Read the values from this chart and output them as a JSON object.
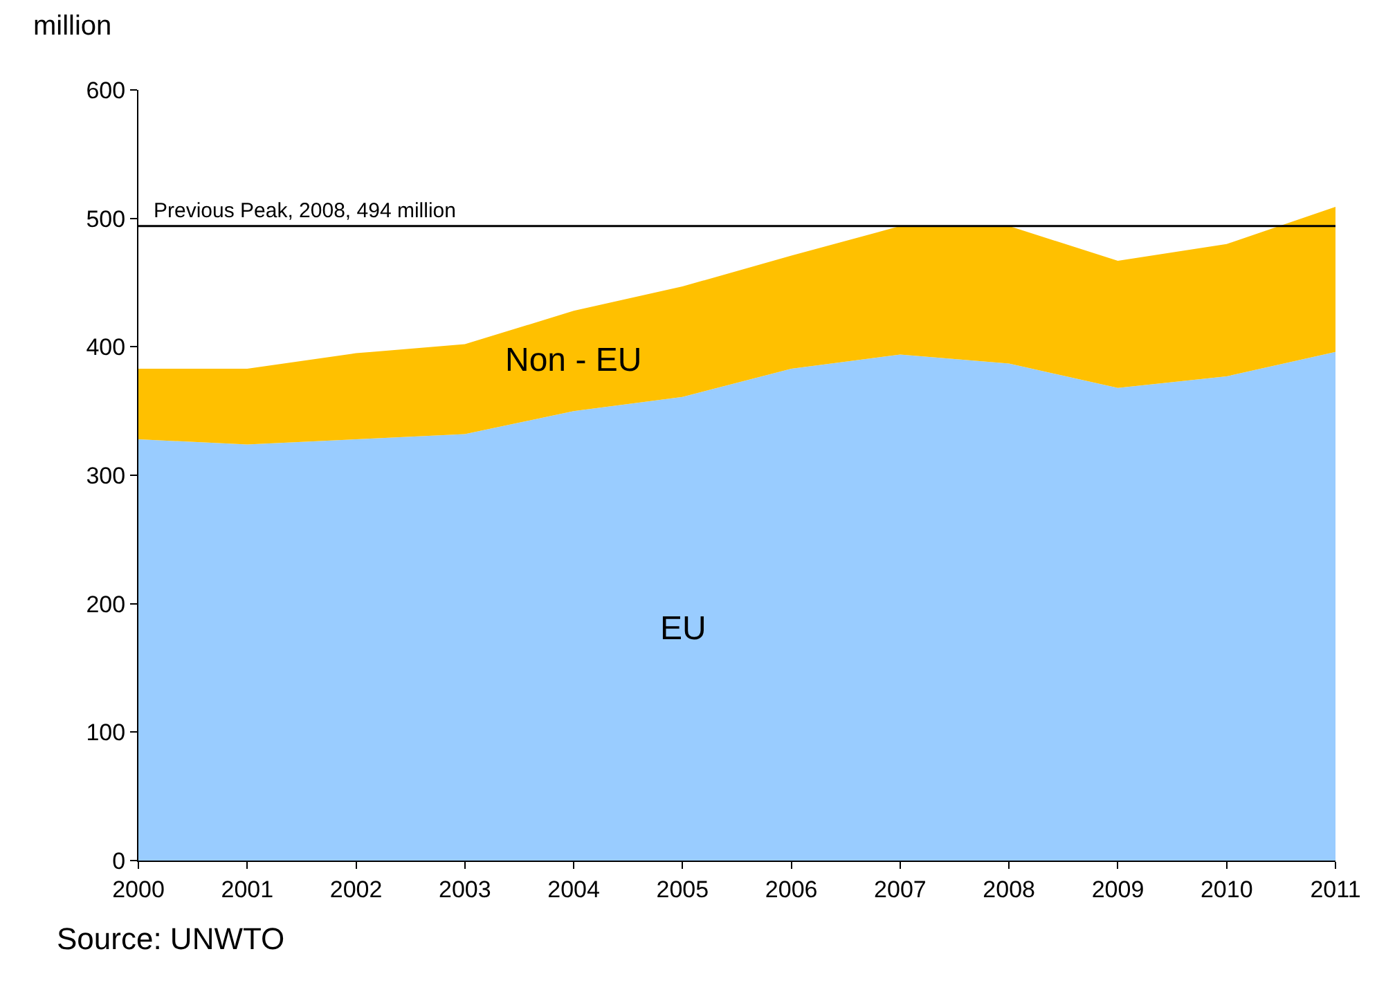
{
  "chart_data": {
    "type": "area",
    "stacked": true,
    "ylabel": "million",
    "x": [
      2000,
      2001,
      2002,
      2003,
      2004,
      2005,
      2006,
      2007,
      2008,
      2009,
      2010,
      2011
    ],
    "series": [
      {
        "name": "EU",
        "color": "#99ccff",
        "values": [
          328,
          324,
          328,
          332,
          350,
          361,
          383,
          394,
          387,
          368,
          377,
          396
        ]
      },
      {
        "name": "Non - EU",
        "color": "#ffc000",
        "values": [
          55,
          59,
          67,
          70,
          78,
          86,
          88,
          100,
          107,
          99,
          103,
          113
        ]
      }
    ],
    "xlim": [
      2000,
      2011
    ],
    "xticks": [
      2000,
      2001,
      2002,
      2003,
      2004,
      2005,
      2006,
      2007,
      2008,
      2009,
      2010,
      2011
    ],
    "ylim": [
      0,
      600
    ],
    "yticks": [
      0,
      100,
      200,
      300,
      400,
      500,
      600
    ],
    "ref_lines": [
      {
        "axis": "y",
        "value": 494,
        "label": "Previous Peak, 2008, 494 million",
        "color": "#000000"
      }
    ],
    "annotations": [
      "Source: UNWTO"
    ],
    "legend": false
  }
}
